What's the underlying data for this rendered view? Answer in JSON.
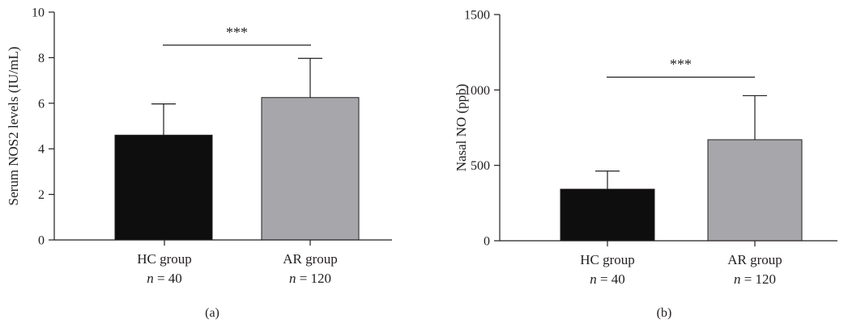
{
  "chart_data": [
    {
      "type": "bar",
      "panel_label": "(a)",
      "ylabel": "Serum NOS2 levels (IU/mL)",
      "ylim": [
        0,
        10
      ],
      "yticks": [
        "0",
        "2",
        "4",
        "6",
        "8",
        "10"
      ],
      "ytick_values": [
        0,
        2,
        4,
        6,
        8,
        10
      ],
      "categories": [
        "HC group",
        "AR group"
      ],
      "category_sublabels": [
        "= 40",
        "= 120"
      ],
      "sublabel_prefix": "n",
      "values": [
        4.6,
        6.25
      ],
      "error_upper": [
        5.97,
        7.97
      ],
      "bar_colors": [
        "#0e0e0e",
        "#a7a6ab"
      ],
      "significance": {
        "label": "***",
        "y": 8.55
      }
    },
    {
      "type": "bar",
      "panel_label": "(b)",
      "ylabel": "Nasal NO (ppb)",
      "ylim": [
        0,
        1500
      ],
      "yticks": [
        "0",
        "500",
        "1000",
        "1500"
      ],
      "ytick_values": [
        0,
        500,
        1000,
        1500
      ],
      "categories": [
        "HC group",
        "AR group"
      ],
      "category_sublabels": [
        "= 40",
        "= 120"
      ],
      "sublabel_prefix": "n",
      "values": [
        342,
        670
      ],
      "error_upper": [
        462,
        962
      ],
      "bar_colors": [
        "#0e0e0e",
        "#a7a6ab"
      ],
      "significance": {
        "label": "***",
        "y": 1085
      }
    }
  ]
}
